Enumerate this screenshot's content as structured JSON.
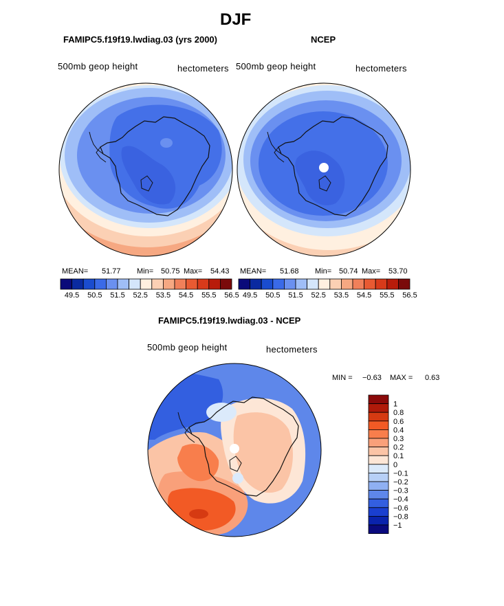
{
  "title": "DJF",
  "panels": [
    {
      "id": "model",
      "case": "FAMIPC5.f19f19.lwdiag.03 (yrs 2000)",
      "variable": "500mb geop height",
      "units": "hectometers",
      "mean_label": "MEAN=",
      "mean": "51.77",
      "min_label": "Min=",
      "min": "50.75",
      "max_label": "Max=",
      "max": "54.43"
    },
    {
      "id": "obs",
      "case": "NCEP",
      "variable": "500mb geop height",
      "units": "hectometers",
      "mean_label": "MEAN=",
      "mean": "51.68",
      "min_label": "Min=",
      "min": "50.74",
      "max_label": "Max=",
      "max": "53.70"
    }
  ],
  "diff": {
    "title": "FAMIPC5.f19f19.lwdiag.03 - NCEP",
    "variable": "500mb geop height",
    "units": "hectometers",
    "min_label": "MIN =",
    "min": "−0.63",
    "max_label": "MAX =",
    "max": "0.63"
  },
  "colorbar_top": {
    "colors": [
      "#0a0a7a",
      "#0a2aa0",
      "#1a4ccf",
      "#3a6ae8",
      "#6a90f0",
      "#9fbef7",
      "#d4e6fb",
      "#fff0e0",
      "#fbd0b4",
      "#f6a882",
      "#f0805a",
      "#e85a32",
      "#d83a1a",
      "#b81c0a",
      "#7a0a0a"
    ],
    "labels": [
      "49.5",
      "50.5",
      "51.5",
      "52.5",
      "53.5",
      "54.5",
      "55.5",
      "56.5"
    ]
  },
  "colorbar_diff": {
    "colors": [
      "#8b0a0a",
      "#b01a0a",
      "#d63a12",
      "#f25a25",
      "#f87e4c",
      "#f9a07a",
      "#fbc4a6",
      "#fde6d6",
      "#dbeafb",
      "#b7d0f7",
      "#8fb0f2",
      "#5e87ea",
      "#335fe0",
      "#1a3fd0",
      "#0a23ad",
      "#0a0a7e"
    ],
    "labels": [
      "1",
      "0.8",
      "0.6",
      "0.4",
      "0.3",
      "0.2",
      "0.1",
      "0",
      "−0.1",
      "−0.2",
      "−0.3",
      "−0.4",
      "−0.6",
      "−0.8",
      "−1"
    ]
  },
  "chart_data": [
    {
      "type": "heatmap",
      "title": "FAMIPC5.f19f19.lwdiag.03 (yrs 2000)",
      "subtitle": "500mb geop height",
      "units": "hectometers",
      "projection": "south polar stereographic",
      "mean": 51.77,
      "min": 50.75,
      "max": 54.43,
      "contour_levels": [
        49.5,
        50,
        50.5,
        51,
        51.5,
        52,
        52.5,
        53,
        53.5,
        54,
        54.5,
        55,
        55.5,
        56,
        56.5
      ]
    },
    {
      "type": "heatmap",
      "title": "NCEP",
      "subtitle": "500mb geop height",
      "units": "hectometers",
      "projection": "south polar stereographic",
      "mean": 51.68,
      "min": 50.74,
      "max": 53.7,
      "contour_levels": [
        49.5,
        50,
        50.5,
        51,
        51.5,
        52,
        52.5,
        53,
        53.5,
        54,
        54.5,
        55,
        55.5,
        56,
        56.5
      ]
    },
    {
      "type": "heatmap",
      "title": "FAMIPC5.f19f19.lwdiag.03 - NCEP",
      "subtitle": "500mb geop height",
      "units": "hectometers",
      "projection": "south polar stereographic",
      "min": -0.63,
      "max": 0.63,
      "contour_levels": [
        -1,
        -0.8,
        -0.6,
        -0.4,
        -0.3,
        -0.2,
        -0.1,
        0,
        0.1,
        0.2,
        0.3,
        0.4,
        0.6,
        0.8,
        1
      ]
    }
  ]
}
